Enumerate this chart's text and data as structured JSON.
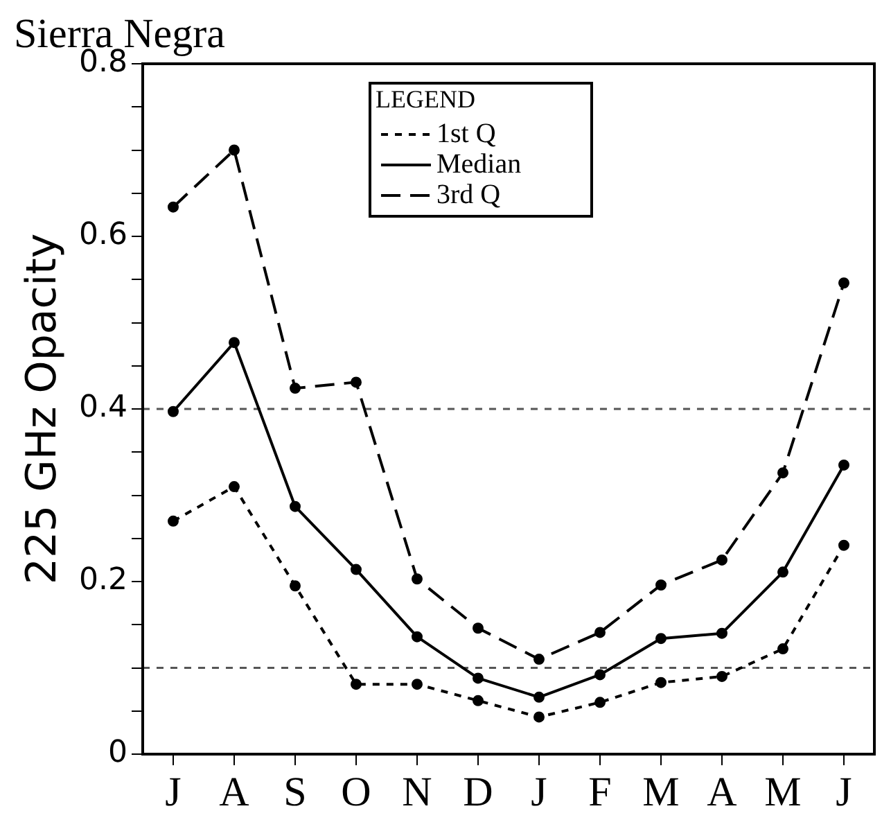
{
  "chart_data": {
    "type": "line",
    "title": "Sierra Negra",
    "ylabel": "225 GHz Opacity",
    "legend_title": "LEGEND",
    "legend": "top",
    "categories": [
      "J",
      "A",
      "S",
      "O",
      "N",
      "D",
      "J",
      "F",
      "M",
      "A",
      "M",
      "J"
    ],
    "series": [
      {
        "name": "1st Q",
        "color": "#000000",
        "line_style": "dotted",
        "values": [
          0.27,
          0.31,
          0.195,
          0.081,
          0.081,
          0.062,
          0.043,
          0.06,
          0.083,
          0.09,
          0.122,
          0.242
        ]
      },
      {
        "name": "Median",
        "color": "#000000",
        "line_style": "solid",
        "values": [
          0.397,
          0.477,
          0.287,
          0.214,
          0.136,
          0.088,
          0.066,
          0.092,
          0.134,
          0.14,
          0.211,
          0.335
        ]
      },
      {
        "name": "3rd Q",
        "color": "#000000",
        "line_style": "dashed",
        "values": [
          0.634,
          0.7,
          0.424,
          0.431,
          0.203,
          0.146,
          0.11,
          0.141,
          0.196,
          0.225,
          0.326,
          0.546
        ]
      }
    ],
    "marker": "circle",
    "ylim": [
      0,
      0.8
    ],
    "yticks": [
      0,
      {
        "value": 0.05,
        "label": null
      },
      {
        "value": 0.1,
        "label": null
      },
      {
        "value": 0.15,
        "label": null
      },
      0.2,
      {
        "value": 0.25,
        "label": null
      },
      {
        "value": 0.3,
        "label": null
      },
      {
        "value": 0.35,
        "label": null
      },
      0.4,
      {
        "value": 0.45,
        "label": null
      },
      {
        "value": 0.5,
        "label": null
      },
      {
        "value": 0.55,
        "label": null
      },
      0.6,
      {
        "value": 0.65,
        "label": null
      },
      {
        "value": 0.7,
        "label": null
      },
      {
        "value": 0.75,
        "label": null
      },
      0.8
    ],
    "ref_lines": [
      {
        "axis": "y",
        "value": 0.4,
        "line_style": "dotted"
      },
      {
        "axis": "y",
        "value": 0.1,
        "line_style": "dotted"
      }
    ],
    "grid": false
  }
}
